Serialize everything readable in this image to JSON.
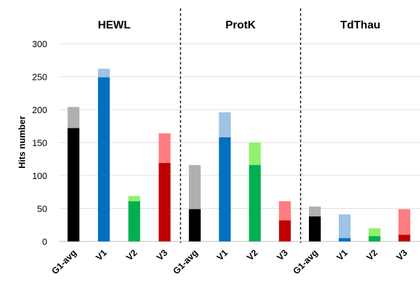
{
  "chart_data": {
    "type": "bar",
    "ylabel": "Hits number",
    "ylim": [
      0,
      300
    ],
    "yticks": [
      0,
      50,
      100,
      150,
      200,
      250,
      300
    ],
    "grid": true,
    "groups": [
      {
        "title": "HEWL",
        "bars": [
          {
            "label": "G1-avg",
            "lower": 172,
            "total": 204,
            "lower_color": "#000000",
            "upper_color": "#b0b0b0"
          },
          {
            "label": "V1",
            "lower": 249,
            "total": 262,
            "lower_color": "#0070c0",
            "upper_color": "#9dc3e6"
          },
          {
            "label": "V2",
            "lower": 61,
            "total": 69,
            "lower_color": "#00b050",
            "upper_color": "#92f06e"
          },
          {
            "label": "V3",
            "lower": 119,
            "total": 164,
            "lower_color": "#c00000",
            "upper_color": "#ff7c80"
          }
        ]
      },
      {
        "title": "ProtK",
        "bars": [
          {
            "label": "G1-avg",
            "lower": 49,
            "total": 116,
            "lower_color": "#000000",
            "upper_color": "#b0b0b0"
          },
          {
            "label": "V1",
            "lower": 158,
            "total": 196,
            "lower_color": "#0070c0",
            "upper_color": "#9dc3e6"
          },
          {
            "label": "V2",
            "lower": 116,
            "total": 150,
            "lower_color": "#00b050",
            "upper_color": "#92f06e"
          },
          {
            "label": "V3",
            "lower": 32,
            "total": 61,
            "lower_color": "#c00000",
            "upper_color": "#ff7c80"
          }
        ]
      },
      {
        "title": "TdThau",
        "bars": [
          {
            "label": "G1-avg",
            "lower": 38,
            "total": 53,
            "lower_color": "#000000",
            "upper_color": "#b0b0b0"
          },
          {
            "label": "V1",
            "lower": 5,
            "total": 41,
            "lower_color": "#0070c0",
            "upper_color": "#9dc3e6"
          },
          {
            "label": "V2",
            "lower": 8,
            "total": 20,
            "lower_color": "#00b050",
            "upper_color": "#92f06e"
          },
          {
            "label": "V3",
            "lower": 10,
            "total": 49,
            "lower_color": "#c00000",
            "upper_color": "#ff7c80"
          }
        ]
      }
    ]
  }
}
